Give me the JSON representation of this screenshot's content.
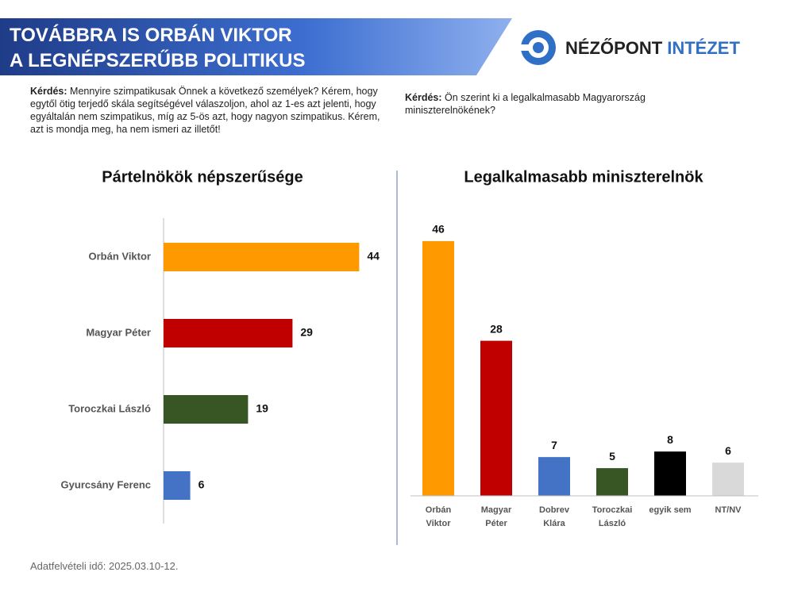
{
  "header": {
    "title_lines": [
      "TOVÁBBRA IS ORBÁN VIKTOR",
      "A LEGNÉPSZERŰBB POLITIKUS"
    ],
    "logo": [
      "NÉZŐPONT",
      "INTÉZET"
    ]
  },
  "questions": [
    {
      "label": "Kérdés:",
      "text": "Mennyire szimpatikusak Önnek a következő személyek? Kérem, hogy egytől ötig terjedő skála segítségével válaszoljon, ahol az 1-es azt jelenti, hogy egyáltalán nem szimpatikus, míg az 5-ös azt, hogy nagyon szimpatikus. Kérem, azt is mondja meg, ha nem ismeri az illetőt!"
    },
    {
      "label": "Kérdés:",
      "text": "Ön szerint ki a legalkalmasabb Magyarország miniszterelnökének?"
    }
  ],
  "chart_data": [
    {
      "type": "bar",
      "orientation": "horizontal",
      "title": "Pártelnökök népszerűsége",
      "categories": [
        [
          "Orbán Viktor"
        ],
        [
          "Magyar Péter"
        ],
        [
          "Toroczkai László"
        ],
        [
          "Gyurcsány Ferenc"
        ]
      ],
      "values": [
        44,
        29,
        19,
        6
      ],
      "colors": [
        "#FF9900",
        "#C00000",
        "#375623",
        "#4472C4"
      ],
      "xlim": [
        0,
        50
      ]
    },
    {
      "type": "bar",
      "orientation": "vertical",
      "title": "Legalkalmasabb miniszterelnök",
      "categories": [
        [
          "Orbán",
          "Viktor"
        ],
        [
          "Magyar",
          "Péter"
        ],
        [
          "Dobrev",
          "Klára"
        ],
        [
          "Toroczkai",
          "László"
        ],
        [
          "egyik sem"
        ],
        [
          "NT/NV"
        ]
      ],
      "values": [
        46,
        28,
        7,
        5,
        8,
        6
      ],
      "colors": [
        "#FF9900",
        "#C00000",
        "#4472C4",
        "#375623",
        "#000000",
        "#D9D9D9"
      ],
      "ylim": [
        0,
        50
      ]
    }
  ],
  "footer": "Adatfelvételi idő: 2025.03.10-12."
}
